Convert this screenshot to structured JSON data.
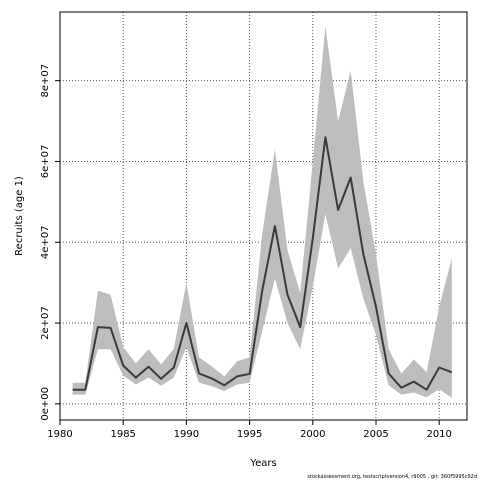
{
  "chart_data": {
    "type": "line",
    "xlabel": "Years",
    "ylabel": "Recruits (age 1)",
    "xlim": [
      1980,
      2012.2
    ],
    "ylim": [
      -4000000,
      97000000
    ],
    "x_ticks": [
      1980,
      1985,
      1990,
      1995,
      2000,
      2005,
      2010
    ],
    "x_tick_labels": [
      "1980",
      "1985",
      "1990",
      "1995",
      "2000",
      "2005",
      "2010"
    ],
    "y_ticks": [
      0,
      20000000,
      40000000,
      60000000,
      80000000
    ],
    "y_tick_labels": [
      "0e+00",
      "2e+07",
      "4e+07",
      "6e+07",
      "8e+07"
    ],
    "grid": true,
    "grid_style": "dotted",
    "colors": {
      "line": "#3a3a3a",
      "band": "#bdbdbd",
      "grid": "#555555",
      "axis": "#000000"
    },
    "series": [
      {
        "x": [
          1981,
          1982,
          1983,
          1984,
          1985,
          1986,
          1987,
          1988,
          1989,
          1990,
          1991,
          1992,
          1993,
          1994,
          1995,
          1996,
          1997,
          1998,
          1999,
          2000,
          2001,
          2002,
          2003,
          2004,
          2005,
          2006,
          2007,
          2008,
          2009,
          2010,
          2011
        ],
        "y": [
          3500000,
          3500000,
          19000000,
          18800000,
          9500000,
          6500000,
          9200000,
          6200000,
          9000000,
          20000000,
          7500000,
          6300000,
          4600000,
          6800000,
          7400000,
          28000000,
          44000000,
          27000000,
          19000000,
          41000000,
          66000000,
          48000000,
          56000000,
          37000000,
          24000000,
          7500000,
          4000000,
          5500000,
          3500000,
          9000000,
          7800000
        ],
        "lower": [
          2300000,
          2300000,
          13500000,
          13500000,
          7000000,
          4800000,
          6500000,
          4500000,
          6500000,
          14000000,
          5200000,
          4400000,
          3200000,
          4800000,
          5200000,
          18000000,
          31000000,
          20000000,
          13500000,
          29000000,
          47000000,
          33500000,
          38500000,
          26000000,
          17000000,
          4600000,
          2300000,
          2800000,
          1600000,
          3600000,
          1500000
        ],
        "upper": [
          5200000,
          5200000,
          28000000,
          27000000,
          14000000,
          10000000,
          13500000,
          9800000,
          13600000,
          30000000,
          11500000,
          9300000,
          6800000,
          10500000,
          11500000,
          42000000,
          63000000,
          38000000,
          27500000,
          60000000,
          93500000,
          70000000,
          82500000,
          55000000,
          37000000,
          13500000,
          7500000,
          11000000,
          7800000,
          24000000,
          36000000
        ]
      }
    ],
    "footer": "stockassessment.org, testscriptversion4, r9005 , git: 360f5995c92d"
  }
}
